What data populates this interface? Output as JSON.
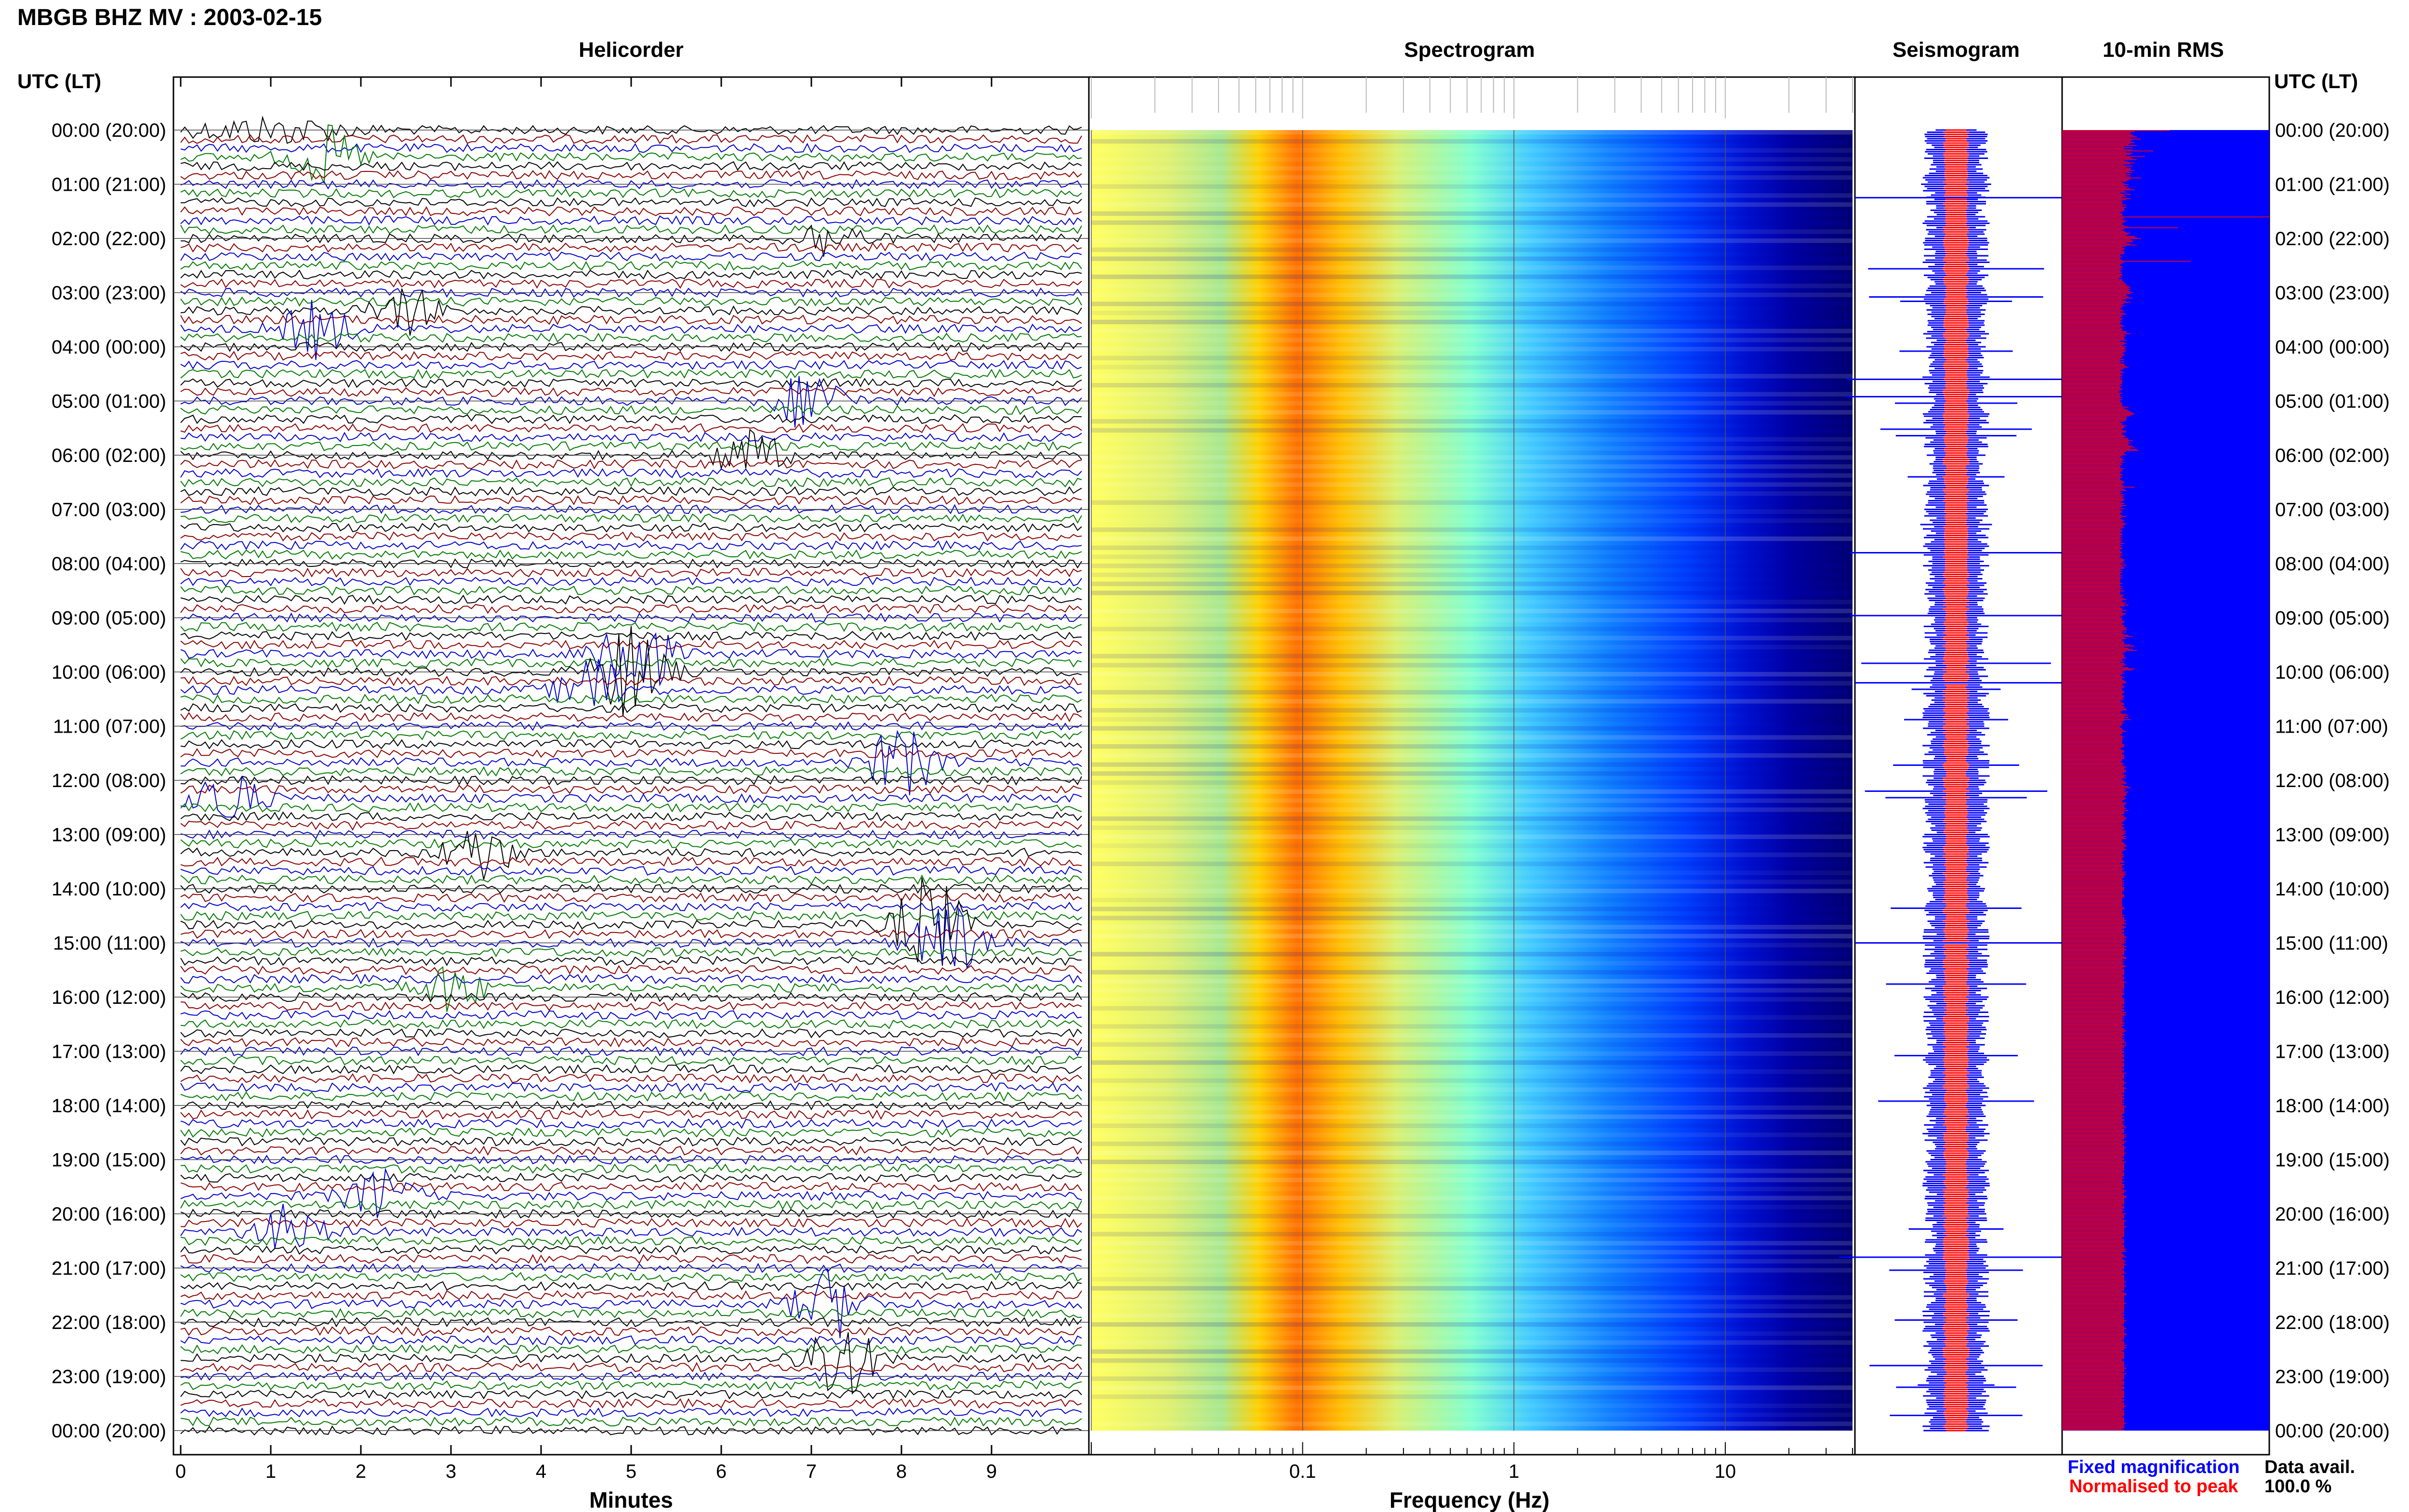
{
  "header": {
    "title": "MBGB BHZ MV : 2003-02-15",
    "utc_lt_left": "UTC (LT)",
    "utc_lt_right": "UTC (LT)"
  },
  "panels": {
    "helicorder": "Helicorder",
    "spectrogram": "Spectrogram",
    "seismogram": "Seismogram",
    "rms": "10-min RMS"
  },
  "time_labels": [
    "00:00 (20:00)",
    "01:00 (21:00)",
    "02:00 (22:00)",
    "03:00 (23:00)",
    "04:00 (00:00)",
    "05:00 (01:00)",
    "06:00 (02:00)",
    "07:00 (03:00)",
    "08:00 (04:00)",
    "09:00 (05:00)",
    "10:00 (06:00)",
    "11:00 (07:00)",
    "12:00 (08:00)",
    "13:00 (09:00)",
    "14:00 (10:00)",
    "15:00 (11:00)",
    "16:00 (12:00)",
    "17:00 (13:00)",
    "18:00 (14:00)",
    "19:00 (15:00)",
    "20:00 (16:00)",
    "21:00 (17:00)",
    "22:00 (18:00)",
    "23:00 (19:00)",
    "00:00 (20:00)"
  ],
  "chart_data": [
    {
      "type": "line",
      "title": "Helicorder",
      "xlabel": "Minutes",
      "x_ticks": [
        "0",
        "1",
        "2",
        "3",
        "4",
        "5",
        "6",
        "7",
        "8",
        "9"
      ],
      "xlim": [
        0,
        10
      ],
      "rows_per_hour": 6,
      "trace_colors": [
        "#000000",
        "#8b0000",
        "#0000cc",
        "#007a00"
      ]
    },
    {
      "type": "heatmap",
      "title": "Spectrogram",
      "xlabel": "Frequency (Hz)",
      "x_scale": "log",
      "x_ticks": [
        "0.1",
        "1",
        "10"
      ],
      "xlim": [
        0.01,
        40
      ],
      "colormap": [
        "#00008b",
        "#0000ff",
        "#00c8ff",
        "#60ffa0",
        "#ffff00",
        "#ff8c00",
        "#ff0000"
      ]
    },
    {
      "type": "line",
      "title": "Seismogram",
      "legend": [
        "Fixed magnification",
        "Normalised to peak"
      ],
      "colors": {
        "fixed": "#0000ff",
        "normalised": "#ff0000"
      }
    },
    {
      "type": "bar",
      "title": "10-min RMS",
      "orientation": "horizontal",
      "bar_color": "#ff0000",
      "background_color": "#0000ff",
      "data_avail_label": "Data avail.",
      "data_avail_value": "100.0 %",
      "values": [
        0.52,
        0.35,
        0.33,
        0.33,
        0.34,
        0.35,
        0.36,
        0.33,
        0.38,
        0.34,
        0.33,
        0.35,
        0.33,
        0.32,
        0.36,
        0.3,
        0.34,
        0.3,
        0.34,
        0.44,
        0.31,
        0.34,
        0.33,
        0.31,
        0.4,
        0.33,
        0.34,
        0.36,
        0.3,
        0.32,
        0.35,
        0.33,
        0.3,
        0.34,
        0.31,
        0.33,
        0.33,
        0.35,
        0.32,
        0.34,
        0.31,
        0.33,
        0.31,
        0.33,
        0.38,
        0.33,
        0.32,
        0.31,
        0.29,
        0.3,
        0.32,
        0.3,
        0.32,
        0.31,
        0.33,
        0.35,
        0.3,
        0.31,
        0.28,
        0.33,
        0.3,
        0.31,
        0.29,
        0.33,
        0.31,
        0.29,
        0.29,
        0.29,
        0.29,
        0.31,
        0.29,
        0.31,
        0.3,
        0.3,
        0.3,
        0.29,
        0.28,
        0.29,
        0.29,
        0.29,
        1.0,
        0.3,
        0.29,
        0.3,
        0.31,
        0.3,
        0.29,
        0.29,
        0.3,
        0.32,
        0.56,
        0.3,
        0.29,
        0.3,
        0.31,
        0.33,
        0.32,
        0.31,
        0.35,
        0.36,
        0.38,
        0.33,
        0.34,
        0.34,
        0.31,
        0.33,
        0.36,
        0.31,
        0.29,
        0.3,
        0.3,
        0.29,
        0.3,
        0.3,
        0.3,
        0.28,
        0.28,
        0.29,
        0.28,
        0.28,
        0.29,
        0.62,
        0.3,
        0.29,
        0.28,
        0.28,
        0.29,
        0.29,
        0.28,
        0.29,
        0.28,
        0.29,
        0.28,
        0.29,
        0.29,
        0.28,
        0.29,
        0.27,
        0.29,
        0.29,
        0.3,
        0.3,
        0.31,
        0.31,
        0.32,
        0.33,
        0.32,
        0.33,
        0.32,
        0.33,
        0.34,
        0.33,
        0.31,
        0.31,
        0.32,
        0.34,
        0.31,
        0.29,
        0.31,
        0.33,
        0.3,
        0.29,
        0.3,
        0.29,
        0.29,
        0.28,
        0.29,
        0.3,
        0.28,
        0.3,
        0.31,
        0.29,
        0.29,
        0.28,
        0.29,
        0.29,
        0.28,
        0.29,
        0.28,
        0.28,
        0.29,
        0.3,
        0.28,
        0.29,
        0.29,
        0.29,
        0.31,
        0.31,
        0.33,
        0.3,
        0.31,
        0.3,
        0.3,
        0.3,
        0.31,
        0.28,
        0.3,
        0.31,
        0.3,
        0.29,
        0.31,
        0.3,
        0.31,
        0.3,
        0.31,
        0.3,
        0.29,
        0.3,
        0.3,
        0.29,
        0.29,
        0.28,
        0.3,
        0.28,
        0.3,
        0.28,
        0.3,
        0.3,
        0.31,
        0.32,
        0.3,
        0.29,
        0.28,
        0.29,
        0.3,
        0.28,
        0.29,
        0.29,
        0.28,
        0.29,
        0.28,
        0.29,
        0.29,
        0.29,
        0.29,
        0.28,
        0.29,
        0.28,
        0.28,
        0.29,
        0.29,
        0.28,
        0.27,
        0.29,
        0.28,
        0.28,
        0.28,
        0.29,
        0.28,
        0.29,
        0.28,
        0.28,
        0.29,
        0.29,
        0.29,
        0.29,
        0.32,
        0.3,
        0.31,
        0.32,
        0.33,
        0.34,
        0.35,
        0.34,
        0.33,
        0.31,
        0.31,
        0.31,
        0.31,
        0.3,
        0.28,
        0.29,
        0.29,
        0.31,
        0.3,
        0.3,
        0.29,
        0.29,
        0.31,
        0.31,
        0.29,
        0.29,
        0.3,
        0.31,
        0.3,
        0.32,
        0.32,
        0.34,
        0.32,
        0.33,
        0.32,
        0.32,
        0.34,
        0.35,
        0.33,
        0.36,
        0.37,
        0.31,
        0.3,
        0.3,
        0.31,
        0.29,
        0.28,
        0.29,
        0.29,
        0.3,
        0.29,
        0.3,
        0.28,
        0.29,
        0.28,
        0.28,
        0.28,
        0.3,
        0.29,
        0.29,
        0.28,
        0.28,
        0.29,
        0.29,
        0.28,
        0.29,
        0.28,
        0.28,
        0.29,
        0.3,
        0.3,
        0.29,
        0.29,
        0.3,
        0.35,
        0.29,
        0.3,
        0.31,
        0.28,
        0.29,
        0.28,
        0.3,
        0.29,
        0.3,
        0.29,
        0.3,
        0.3,
        0.29,
        0.28,
        0.3,
        0.29,
        0.31,
        0.29,
        0.28,
        0.3,
        0.28,
        0.29,
        0.29,
        0.28,
        0.28,
        0.29,
        0.31,
        0.29,
        0.28,
        0.29,
        0.3,
        0.29,
        0.3,
        0.31,
        0.3,
        0.29,
        0.3,
        0.29,
        0.28,
        0.29,
        0.29,
        0.28,
        0.29,
        0.29,
        0.28,
        0.29,
        0.28,
        0.29,
        0.28,
        0.29,
        0.28,
        0.3,
        0.28,
        0.29,
        0.28,
        0.29,
        0.29,
        0.28,
        0.28,
        0.29,
        0.29,
        0.28,
        0.29,
        0.28,
        0.28,
        0.29,
        0.3,
        0.3,
        0.29,
        0.3,
        0.28,
        0.31,
        0.29,
        0.3,
        0.3,
        0.28,
        0.29,
        0.28,
        0.29,
        0.28,
        0.28,
        0.29,
        0.28,
        0.29,
        0.28,
        0.28,
        0.28,
        0.28,
        0.29,
        0.28,
        0.28,
        0.29,
        0.28,
        0.29,
        0.28,
        0.3,
        0.28,
        0.28,
        0.28,
        0.3,
        0.29,
        0.29,
        0.3,
        0.31,
        0.29,
        0.29,
        0.31,
        0.3,
        0.32,
        0.3,
        0.28,
        0.29,
        0.29,
        0.31,
        0.29,
        0.29,
        0.31,
        0.3,
        0.29,
        0.28,
        0.29,
        0.29,
        0.29,
        0.3,
        0.3,
        0.29,
        0.29,
        0.3,
        0.3,
        0.31,
        0.31,
        0.31,
        0.29,
        0.31,
        0.29,
        0.3,
        0.32,
        0.34,
        0.3,
        0.31,
        0.29,
        0.29,
        0.3,
        0.3,
        0.3,
        0.33,
        0.35,
        0.3,
        0.32,
        0.34,
        0.36,
        0.31,
        0.3,
        0.29,
        0.3,
        0.3,
        0.3,
        0.31,
        0.29,
        0.29,
        0.3,
        0.28,
        0.3,
        0.31,
        0.3,
        0.29,
        0.32,
        0.35,
        0.34,
        0.3,
        0.29,
        0.3,
        0.29,
        0.28,
        0.29,
        0.3,
        0.29,
        0.29,
        0.3,
        0.31,
        0.31,
        0.29,
        0.29,
        0.3,
        0.3,
        0.29,
        0.29,
        0.29,
        0.3,
        0.3,
        0.29,
        0.29,
        0.3,
        0.3,
        0.29,
        0.3,
        0.29,
        0.28,
        0.29,
        0.3,
        0.3,
        0.29,
        0.3,
        0.3,
        0.31,
        0.31,
        0.29,
        0.28,
        0.29,
        0.31,
        0.32,
        0.3,
        0.32,
        0.3,
        0.33,
        0.3,
        0.29,
        0.3,
        0.29,
        0.29,
        0.28,
        0.28,
        0.29,
        0.29,
        0.3,
        0.31,
        0.29,
        0.29,
        0.28,
        0.29,
        0.3,
        0.29,
        0.29,
        0.29,
        0.29,
        0.29,
        0.29,
        0.3,
        0.3,
        0.3,
        0.29,
        0.28,
        0.29,
        0.3,
        0.3,
        0.29,
        0.29,
        0.3,
        0.3,
        0.3,
        0.3,
        0.29,
        0.29,
        0.28,
        0.29,
        0.3,
        0.29,
        0.3,
        0.31,
        0.3,
        0.3,
        0.31,
        0.31,
        0.3,
        0.29,
        0.3,
        0.31,
        0.3,
        0.31,
        0.29,
        0.29,
        0.3,
        0.31,
        0.31,
        0.29,
        0.3,
        0.32,
        0.33,
        0.3,
        0.31,
        0.3,
        0.32,
        0.31,
        0.31,
        0.31,
        0.3,
        0.3,
        0.31,
        0.3,
        0.29,
        0.29,
        0.31,
        0.31,
        0.3,
        0.3,
        0.3,
        0.31,
        0.3,
        0.32,
        0.3,
        0.3,
        0.3,
        0.29,
        0.3,
        0.3,
        0.31,
        0.31,
        0.3,
        0.3,
        0.29,
        0.29,
        0.3,
        0.29,
        0.29,
        0.3,
        0.3,
        0.29,
        0.31,
        0.3,
        0.31,
        0.3,
        0.29,
        0.31,
        0.3,
        0.31,
        0.29,
        0.29,
        0.29,
        0.3,
        0.3,
        0.31,
        0.31,
        0.3,
        0.3,
        0.31,
        0.3,
        0.29,
        0.29,
        0.29,
        0.3,
        0.29,
        0.3,
        0.29,
        0.29,
        0.29,
        0.3,
        0.3,
        0.28,
        0.3,
        0.29,
        0.29,
        0.29,
        0.3,
        0.29,
        0.29,
        0.31,
        0.3,
        0.31,
        0.3,
        0.3,
        0.3,
        0.29,
        0.29,
        0.3,
        0.29,
        0.3,
        0.29,
        0.3,
        0.29,
        0.3,
        0.3,
        0.3,
        0.3,
        0.29,
        0.29,
        0.29,
        0.3,
        0.3,
        0.3,
        0.29,
        0.29,
        0.29,
        0.29,
        0.29,
        0.29,
        0.29,
        0.29,
        0.29,
        0.3,
        0.3,
        0.29,
        0.29,
        0.29,
        0.29,
        0.29,
        0.3,
        0.29,
        0.3,
        0.3,
        0.3,
        0.31,
        0.3,
        0.3,
        0.31,
        0.29,
        0.3,
        0.31,
        0.3,
        0.29,
        0.3,
        0.3,
        0.29,
        0.3,
        0.3,
        0.3,
        0.31,
        0.31,
        0.3,
        0.31,
        0.3,
        0.31,
        0.3,
        0.29,
        0.3,
        0.31,
        0.3,
        0.3,
        0.31,
        0.3,
        0.3,
        0.3,
        0.3,
        0.29,
        0.3,
        0.31,
        0.31,
        0.29,
        0.3,
        0.29,
        0.3,
        0.29,
        0.3,
        0.31,
        0.3,
        0.29,
        0.3,
        0.3,
        0.3,
        0.3,
        0.3,
        0.3,
        0.29,
        0.3,
        0.3,
        0.3,
        0.29,
        0.3,
        0.31,
        0.3,
        0.3,
        0.3,
        0.3,
        0.3,
        0.3,
        0.29,
        0.3,
        0.29,
        0.3,
        0.3,
        0.29,
        0.29,
        0.29,
        0.3,
        0.3,
        0.3,
        0.3,
        0.3,
        0.3,
        0.29,
        0.3,
        0.3,
        0.29,
        0.3,
        0.3,
        0.29,
        0.31,
        0.3,
        0.31,
        0.3,
        0.29,
        0.3,
        0.29,
        0.3,
        0.29,
        0.3,
        0.3,
        0.29,
        0.3,
        0.29,
        0.29,
        0.3,
        0.3,
        0.31,
        0.3,
        0.29,
        0.3,
        0.3,
        0.29,
        0.3,
        0.29,
        0.3,
        0.3,
        0.3,
        0.31,
        0.29,
        0.31,
        0.3,
        0.3,
        0.29,
        0.3,
        0.29,
        0.3,
        0.3,
        0.29,
        0.3,
        0.3,
        0.3,
        0.29,
        0.3,
        0.3,
        0.3,
        0.29,
        0.3,
        0.3,
        0.3,
        0.3,
        0.29,
        0.3,
        0.3,
        0.29,
        0.29,
        0.31,
        0.3,
        0.3,
        0.3,
        0.3,
        0.3,
        0.29,
        0.3,
        0.3,
        0.31,
        0.3,
        0.3,
        0.29,
        0.3,
        0.31,
        0.3,
        0.3,
        0.3,
        0.3,
        0.29,
        0.3,
        0.3,
        0.29,
        0.3,
        0.3,
        0.29,
        0.3,
        0.29,
        0.3,
        0.29,
        0.3,
        0.31,
        0.3,
        0.3,
        0.3,
        0.3,
        0.3,
        0.3,
        0.29,
        0.29,
        0.3,
        0.29,
        0.29,
        0.3,
        0.3,
        0.29,
        0.3,
        0.29,
        0.3,
        0.3,
        0.31,
        0.29,
        0.3,
        0.3,
        0.3,
        0.3,
        0.29,
        0.31,
        0.3,
        0.31,
        0.3,
        0.3,
        0.29,
        0.31,
        0.3,
        0.3,
        0.29,
        0.3,
        0.3,
        0.31,
        0.3,
        0.3,
        0.3,
        0.3,
        0.31,
        0.3,
        0.3,
        0.3,
        0.29,
        0.3,
        0.3,
        0.29,
        0.31,
        0.3,
        0.3,
        0.3,
        0.3,
        0.3,
        0.3,
        0.3,
        0.3,
        0.29,
        0.3,
        0.3,
        0.3,
        0.3,
        0.29,
        0.3,
        0.29,
        0.29,
        0.3,
        0.29,
        0.29,
        0.3,
        0.3,
        0.3,
        0.3,
        0.29,
        0.3,
        0.31,
        0.3,
        0.3,
        0.29,
        0.3,
        0.31,
        0.31,
        0.3,
        0.3,
        0.3,
        0.3,
        0.3,
        0.3,
        0.29,
        0.3,
        0.3,
        0.3,
        0.29,
        0.3,
        0.29,
        0.29,
        0.31,
        0.3,
        0.3,
        0.3,
        0.3,
        0.29,
        0.3,
        0.31,
        0.3,
        0.3,
        0.3,
        0.3,
        0.31,
        0.3,
        0.3,
        0.3,
        0.3,
        0.3,
        0.3,
        0.3,
        0.3,
        0.3,
        0.29,
        0.29,
        0.3,
        0.3,
        0.3,
        0.3,
        0.29,
        0.3,
        0.3,
        0.3,
        0.3,
        0.31,
        0.3,
        0.31,
        0.29,
        0.29,
        0.3,
        0.3,
        0.31,
        0.29,
        0.29,
        0.3,
        0.31,
        0.3,
        0.3,
        0.31,
        0.3,
        0.3,
        0.3,
        0.3,
        0.29,
        0.3,
        0.3,
        0.31,
        0.29,
        0.3,
        0.3,
        0.3,
        0.3,
        0.3,
        0.3,
        0.31,
        0.3,
        0.3,
        0.3,
        0.31,
        0.3,
        0.3,
        0.3,
        0.3,
        0.29,
        0.3,
        0.31,
        0.31,
        0.3,
        0.3,
        0.3,
        0.3,
        0.3,
        0.3,
        0.3,
        0.31,
        0.3,
        0.3,
        0.3,
        0.3,
        0.3,
        0.3,
        0.3,
        0.3,
        0.29,
        0.3,
        0.3,
        0.29,
        0.3,
        0.3,
        0.3,
        0.31,
        0.3,
        0.3,
        0.3,
        0.29,
        0.3,
        0.3,
        0.31,
        0.3,
        0.3,
        0.3,
        0.3,
        0.31,
        0.31,
        0.3,
        0.3,
        0.3,
        0.3,
        0.29,
        0.3,
        0.3,
        0.3,
        0.3,
        0.31,
        0.3,
        0.31,
        0.3,
        0.3,
        0.29,
        0.3,
        0.3,
        0.3,
        0.3,
        0.3,
        0.3,
        0.3,
        0.29,
        0.29,
        0.3,
        0.3,
        0.3,
        0.3,
        0.3,
        0.3,
        0.31,
        0.3,
        0.3,
        0.3,
        0.29,
        0.31,
        0.3,
        0.3,
        0.3,
        0.3,
        0.3,
        0.29,
        0.3,
        0.3,
        0.3,
        0.3,
        0.29,
        0.3,
        0.3,
        0.3,
        0.29,
        0.3,
        0.3,
        0.3,
        0.3,
        0.3,
        0.3,
        0.3,
        0.29,
        0.3,
        0.3,
        0.29,
        0.3,
        0.3,
        0.3,
        0.31,
        0.3,
        0.3,
        0.29,
        0.3,
        0.3,
        0.3,
        0.3,
        0.3,
        0.3,
        0.29,
        0.3,
        0.3,
        0.3,
        0.3,
        0.3,
        0.31,
        0.3,
        0.3,
        0.3,
        0.3,
        0.29,
        0.3
      ]
    }
  ]
}
